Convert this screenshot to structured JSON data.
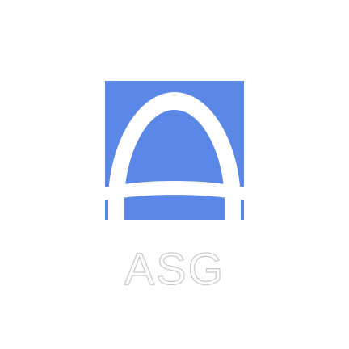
{
  "logo": {
    "wordmark": "ASG",
    "mark_icon": "arch-road-logo-icon",
    "colors": {
      "tile": "#5b87e6",
      "arch": "#ffffff",
      "wordmark_fill": "#ffffff",
      "wordmark_outline": "#c9c9c9",
      "background": "#ffffff"
    }
  }
}
